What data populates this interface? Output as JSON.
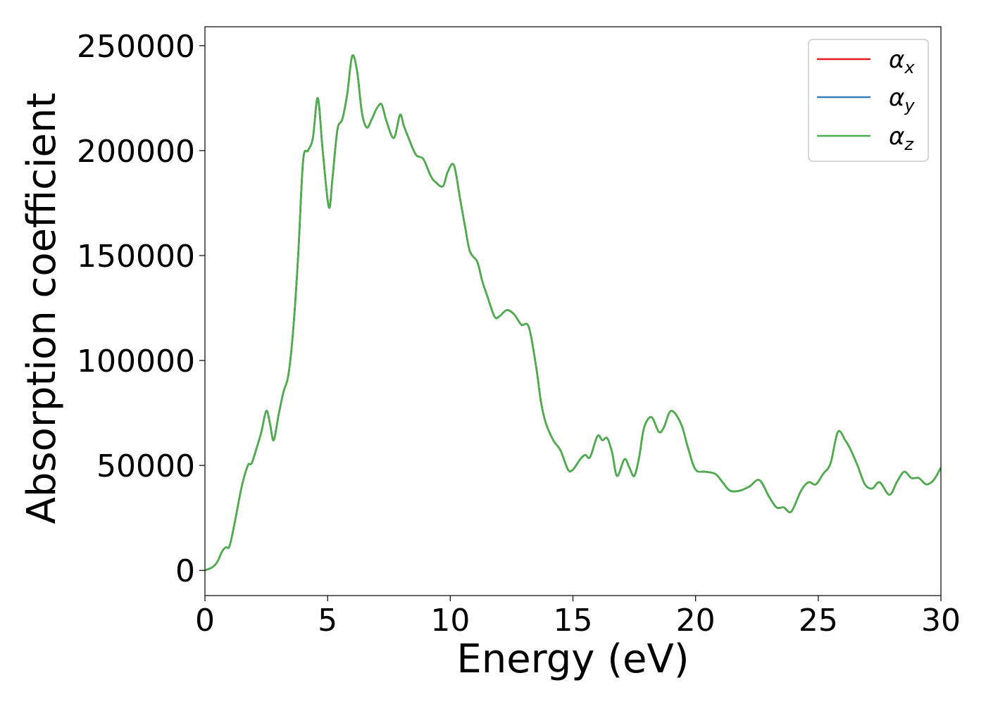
{
  "chart_data": {
    "type": "line",
    "title": "",
    "xlabel": "Energy (eV)",
    "ylabel": "Absorption coefficient",
    "xlim": [
      0,
      30
    ],
    "ylim": [
      -12000,
      259000
    ],
    "xticks": [
      0,
      5,
      10,
      15,
      20,
      25,
      30
    ],
    "yticks": [
      0,
      50000,
      100000,
      150000,
      200000,
      250000
    ],
    "xtick_labels": [
      "0",
      "5",
      "10",
      "15",
      "20",
      "25",
      "30"
    ],
    "ytick_labels": [
      "0",
      "50000",
      "100000",
      "150000",
      "200000",
      "250000"
    ],
    "grid": false,
    "legend_position": "top-right",
    "x": [
      0,
      0.3,
      0.5,
      0.7,
      0.85,
      1.0,
      1.2,
      1.5,
      1.75,
      1.9,
      2.1,
      2.3,
      2.5,
      2.65,
      2.8,
      3.0,
      3.2,
      3.4,
      3.6,
      3.8,
      4.0,
      4.2,
      4.4,
      4.6,
      4.8,
      5.05,
      5.2,
      5.4,
      5.6,
      5.8,
      6.0,
      6.2,
      6.4,
      6.6,
      6.8,
      7.0,
      7.2,
      7.4,
      7.7,
      7.95,
      8.1,
      8.3,
      8.6,
      8.9,
      9.2,
      9.4,
      9.7,
      9.9,
      10.15,
      10.4,
      10.6,
      10.8,
      11.1,
      11.3,
      11.5,
      11.8,
      12.0,
      12.3,
      12.6,
      12.9,
      13.2,
      13.5,
      13.7,
      13.9,
      14.2,
      14.5,
      14.8,
      15.0,
      15.3,
      15.5,
      15.7,
      16.0,
      16.2,
      16.4,
      16.6,
      16.8,
      17.1,
      17.3,
      17.5,
      17.7,
      17.9,
      18.2,
      18.5,
      18.7,
      19.0,
      19.4,
      19.7,
      20.0,
      20.4,
      20.8,
      21.1,
      21.4,
      21.8,
      22.2,
      22.6,
      23.0,
      23.3,
      23.6,
      23.9,
      24.3,
      24.6,
      24.9,
      25.2,
      25.5,
      25.8,
      26.1,
      26.3,
      26.6,
      26.9,
      27.2,
      27.5,
      27.9,
      28.2,
      28.5,
      28.8,
      29.1,
      29.4,
      29.7,
      30.0
    ],
    "series": [
      {
        "name": "α_x",
        "color": "#e41a1c",
        "values": "same-as-α_z"
      },
      {
        "name": "α_y",
        "color": "#377eb8",
        "values": "same-as-α_z"
      },
      {
        "name": "α_z",
        "color": "#4daf4a",
        "values": [
          0,
          1500,
          4000,
          9000,
          11000,
          11500,
          22000,
          40000,
          50000,
          51000,
          58000,
          66000,
          76000,
          70000,
          62000,
          74000,
          85000,
          93000,
          115000,
          150000,
          195000,
          200000,
          206000,
          225000,
          200000,
          173000,
          187000,
          210000,
          215000,
          227000,
          245000,
          238000,
          218000,
          211000,
          215000,
          220000,
          222000,
          214000,
          206000,
          217000,
          212000,
          206000,
          198000,
          196000,
          188000,
          185000,
          183000,
          190000,
          193000,
          177000,
          164000,
          152000,
          147000,
          138000,
          131000,
          121000,
          121000,
          124000,
          122000,
          117000,
          116000,
          97000,
          80000,
          70000,
          62000,
          57000,
          48000,
          48000,
          53000,
          55000,
          54000,
          64000,
          62000,
          63000,
          56000,
          45000,
          53000,
          49000,
          45000,
          54000,
          68000,
          73000,
          66000,
          68000,
          76000,
          70000,
          58000,
          48000,
          47000,
          46000,
          42000,
          38000,
          38000,
          40000,
          43000,
          35000,
          30000,
          30000,
          28000,
          38000,
          42000,
          41000,
          46000,
          51000,
          66000,
          62000,
          58000,
          50000,
          41000,
          39000,
          42000,
          36000,
          42000,
          47000,
          44000,
          44000,
          41000,
          43000,
          49000
        ]
      }
    ]
  }
}
